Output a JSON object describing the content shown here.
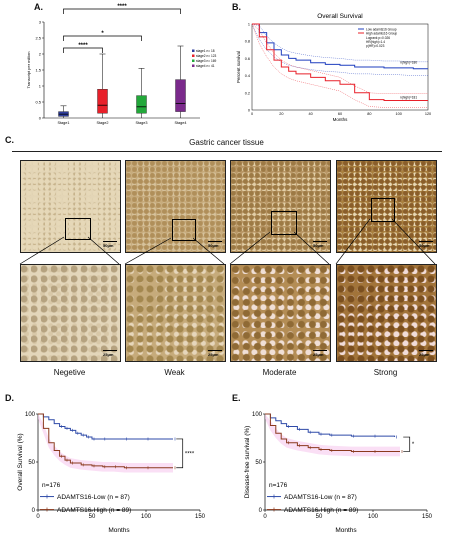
{
  "panels": {
    "A": "A.",
    "B": "B.",
    "C": "C.",
    "D": "D.",
    "E": "E."
  },
  "panelA": {
    "ylabel": "Transcript per million",
    "sig_labels": [
      "****",
      "*",
      "****"
    ],
    "legend": [
      "stage1 n= 18",
      "stage2 n= 123",
      "stage3 n= 169",
      "stage4 n= 41"
    ]
  },
  "panelB": {
    "title": "Overall Survival",
    "legend_low": "Low adamts16 Group",
    "legend_high": "High adamts16 Group",
    "stats": [
      "Logrank p=0.026",
      "HR(high)=1.4",
      "p(HR)=0.023"
    ],
    "n_high": "n(high)=180",
    "n_low": "n(high)=181",
    "xlabel": "Months",
    "ylabel": "Percent survival"
  },
  "panelC": {
    "title": "Gastric cancer tissue",
    "scale_top": "50μm",
    "scale_bottom": "25μm",
    "categories": [
      "Negetive",
      "Weak",
      "Moderate",
      "Strong"
    ]
  },
  "panelD": {
    "ylabel": "Overall Survival (%)",
    "xlabel": "Months",
    "n": "n=176",
    "legend_low": "ADAMTS16-Low (n = 87)",
    "legend_high": "ADAMTS16-High (n = 89)",
    "sig": "****"
  },
  "panelE": {
    "ylabel": "Disease-free survival (%)",
    "xlabel": "Months",
    "n": "n=176",
    "legend_low": "ADAMTS16-Low (n = 87)",
    "legend_high": "ADAMTS16-High (n = 89)",
    "sig": "*"
  },
  "chart_data": [
    {
      "type": "box",
      "panel": "A",
      "categories": [
        "Stage1",
        "Stage2",
        "Stage3",
        "Stage4"
      ],
      "colors": [
        "#2f3e9e",
        "#e8202a",
        "#22a83a",
        "#7b2a8c"
      ],
      "boxes": [
        {
          "min": 0.0,
          "q1": 0.05,
          "median": 0.12,
          "q3": 0.2,
          "max": 0.38
        },
        {
          "min": 0.0,
          "q1": 0.15,
          "median": 0.4,
          "q3": 0.9,
          "max": 2.0
        },
        {
          "min": 0.0,
          "q1": 0.15,
          "median": 0.35,
          "q3": 0.7,
          "max": 1.55
        },
        {
          "min": 0.0,
          "q1": 0.2,
          "median": 0.45,
          "q3": 1.2,
          "max": 2.25
        }
      ],
      "yticks": [
        0,
        0.5,
        1,
        1.5,
        2,
        2.5,
        3
      ],
      "ylim": [
        0,
        3
      ]
    },
    {
      "type": "line",
      "panel": "B",
      "title": "Overall Survival",
      "xticks": [
        0,
        20,
        40,
        60,
        80,
        100,
        120
      ],
      "yticks": [
        0,
        0.2,
        0.4,
        0.6,
        0.8,
        1
      ],
      "series": [
        {
          "name": "Low adamts16 Group",
          "color": "#1f3fbf",
          "x": [
            0,
            5,
            10,
            15,
            20,
            25,
            30,
            40,
            50,
            60,
            70,
            80,
            90,
            100,
            110,
            120
          ],
          "y": [
            1,
            0.9,
            0.78,
            0.7,
            0.64,
            0.6,
            0.58,
            0.55,
            0.53,
            0.52,
            0.5,
            0.5,
            0.49,
            0.49,
            0.48,
            0.48
          ]
        },
        {
          "name": "High adamts16 Group",
          "color": "#e8202a",
          "x": [
            0,
            5,
            10,
            15,
            20,
            25,
            30,
            40,
            50,
            60,
            70,
            80,
            90,
            100,
            110,
            120
          ],
          "y": [
            1,
            0.85,
            0.7,
            0.58,
            0.5,
            0.45,
            0.42,
            0.38,
            0.34,
            0.3,
            0.2,
            0.12,
            0.11,
            0.11,
            0.11,
            0.11
          ]
        }
      ]
    },
    {
      "type": "line",
      "panel": "D",
      "xticks": [
        0,
        50,
        100,
        150
      ],
      "yticks": [
        0,
        50,
        100
      ],
      "series": [
        {
          "name": "ADAMTS16-Low (n = 87)",
          "color": "#2e4aa8",
          "x": [
            0,
            5,
            10,
            15,
            20,
            25,
            30,
            35,
            40,
            45,
            50,
            60,
            80,
            100,
            125
          ],
          "y": [
            100,
            97,
            94,
            90,
            87,
            85,
            83,
            80,
            78,
            76,
            74,
            74,
            74,
            74,
            74
          ]
        },
        {
          "name": "ADAMTS16-High (n = 89)",
          "color": "#8b3a1e",
          "x": [
            0,
            5,
            10,
            15,
            20,
            25,
            30,
            40,
            50,
            60,
            70,
            80,
            100,
            125
          ],
          "y": [
            100,
            85,
            70,
            62,
            56,
            52,
            49,
            47,
            46,
            45,
            45,
            44,
            44,
            44
          ]
        }
      ]
    },
    {
      "type": "line",
      "panel": "E",
      "xticks": [
        0,
        50,
        100,
        150
      ],
      "yticks": [
        0,
        50,
        100
      ],
      "series": [
        {
          "name": "ADAMTS16-Low (n = 87)",
          "color": "#2e4aa8",
          "x": [
            0,
            5,
            10,
            15,
            20,
            30,
            40,
            50,
            60,
            80,
            100,
            120
          ],
          "y": [
            100,
            96,
            93,
            90,
            87,
            84,
            81,
            79,
            78,
            77,
            77,
            76
          ]
        },
        {
          "name": "ADAMTS16-High (n = 89)",
          "color": "#8b3a1e",
          "x": [
            0,
            5,
            10,
            15,
            20,
            30,
            40,
            50,
            60,
            80,
            100,
            125
          ],
          "y": [
            100,
            88,
            80,
            74,
            70,
            67,
            65,
            63,
            62,
            61,
            61,
            61
          ]
        }
      ]
    }
  ]
}
